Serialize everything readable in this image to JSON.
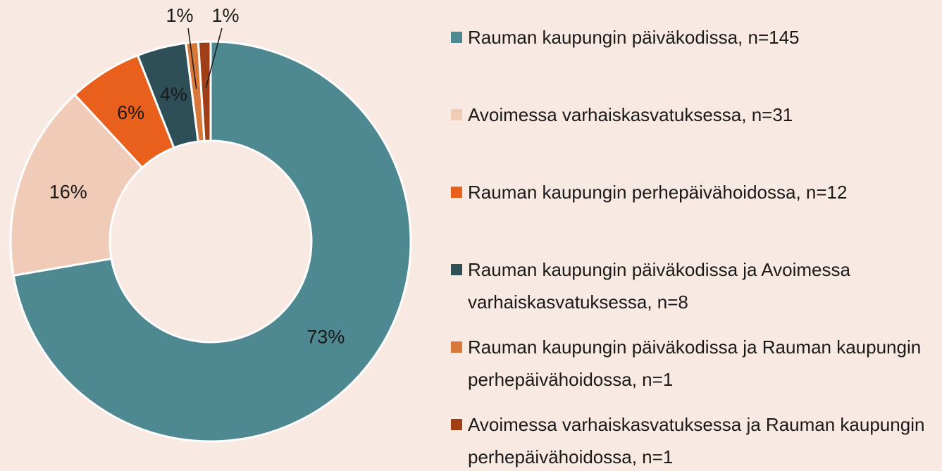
{
  "chart_data": {
    "type": "donut",
    "categories": [
      "Rauman kaupungin päiväkodissa, n=145",
      "Avoimessa varhaiskasvatuksessa, n=31",
      "Rauman kaupungin perhepäivähoidossa, n=12",
      "Rauman kaupungin päiväkodissa ja Avoimessa varhaiskasvatuksessa, n=8",
      "Rauman kaupungin päiväkodissa ja Rauman kaupungin perhepäivähoidossa, n=1",
      "Avoimessa varhaiskasvatuksessa ja Rauman kaupungin perhepäivähoidossa, n=1"
    ],
    "values": [
      73,
      16,
      6,
      4,
      1,
      1
    ],
    "value_labels": [
      "73%",
      "16%",
      "6%",
      "4%",
      "1%",
      "1%"
    ],
    "colors": [
      "#4e8891",
      "#f0cbb8",
      "#e8601c",
      "#2e4f57",
      "#d7773a",
      "#a03f17"
    ],
    "legend": "right"
  }
}
